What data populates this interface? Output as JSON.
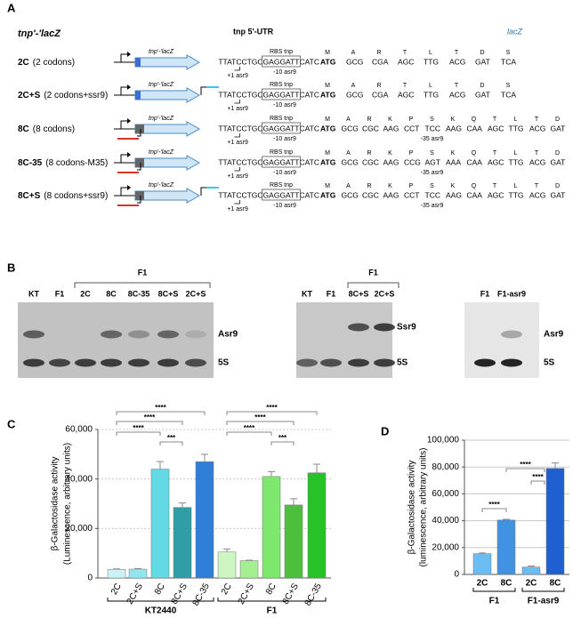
{
  "panel_labels": [
    "A",
    "B",
    "C",
    "D"
  ],
  "constructs": {
    "title": "tnp'-'lacZ",
    "utr_title": "tnp 5'-UTR",
    "lacz_title": "lacZ",
    "gene_label": "tnp'-'lacZ",
    "utr": [
      "TTATCCTGC",
      "GAGGATT",
      "CATC"
    ],
    "rbs_label": "RBS tnp",
    "minus10_label": "-10 asr9",
    "plus1_label": "+1 asr9",
    "rows": [
      {
        "name": "2C",
        "desc": "(2 codons)",
        "aa": [
          "M",
          "A",
          "R",
          "T",
          "L",
          "T",
          "D",
          "S"
        ],
        "codons": [
          "ATG",
          "GCG",
          "CGA",
          "AGC",
          "TTG",
          "ACG",
          "GAT",
          "TCA"
        ],
        "colors": [
          "#000000",
          "#000000",
          "#999999",
          "#999999",
          "#2e75b6",
          "#2e75b6",
          "#2e75b6",
          "#2e75b6"
        ]
      },
      {
        "name": "2C+S",
        "desc": "(2 codons+ssr9)",
        "aa": [
          "M",
          "A",
          "R",
          "T",
          "L",
          "T",
          "D",
          "S"
        ],
        "codons": [
          "ATG",
          "GCG",
          "CGA",
          "AGC",
          "TTG",
          "ACG",
          "GAT",
          "TCA"
        ],
        "colors": [
          "#000000",
          "#000000",
          "#999999",
          "#999999",
          "#2e75b6",
          "#2e75b6",
          "#2e75b6",
          "#2e75b6"
        ]
      },
      {
        "name": "8C",
        "desc": "(8 codons)",
        "aa": [
          "M",
          "A",
          "R",
          "K",
          "P",
          "S",
          "K",
          "Q",
          "T",
          "L",
          "T",
          "D"
        ],
        "codons": [
          "ATG",
          "GCG",
          "CGC",
          "AAG",
          "CCT",
          "TCC",
          "AAG",
          "CAA",
          "AGC",
          "TTG",
          "ACG",
          "GAT"
        ],
        "colors": [
          "#000000",
          "#000000",
          "#000000",
          "#000000",
          "#000000",
          "#3aaa35",
          "#3aaa35",
          "#000000",
          "#999999",
          "#2e75b6",
          "#2e75b6",
          "#2e75b6"
        ],
        "note": "-35 asr9"
      },
      {
        "name": "8C-35",
        "desc": "(8 codons-M35)",
        "aa": [
          "M",
          "A",
          "R",
          "K",
          "P",
          "S",
          "K",
          "Q",
          "T",
          "L",
          "T",
          "D"
        ],
        "codons": [
          "ATG",
          "GCG",
          "CGC",
          "AAG",
          "CCG",
          "AGT",
          "AAA",
          "CAA",
          "AGC",
          "TTG",
          "ACG",
          "GAT"
        ],
        "colors": [
          "#000000",
          "#000000",
          "#000000",
          "#000000",
          "#000000",
          "#e03c31",
          "#e03c31",
          "#000000",
          "#999999",
          "#2e75b6",
          "#2e75b6",
          "#2e75b6"
        ],
        "note": "-35 asr9"
      },
      {
        "name": "8C+S",
        "desc": "(8 codons+ssr9)",
        "aa": [
          "M",
          "A",
          "R",
          "K",
          "P",
          "S",
          "K",
          "Q",
          "T",
          "L",
          "T",
          "D"
        ],
        "codons": [
          "ATG",
          "GCG",
          "CGC",
          "AAG",
          "CCT",
          "TCC",
          "AAG",
          "CAA",
          "AGC",
          "TTG",
          "ACG",
          "GAT"
        ],
        "colors": [
          "#000000",
          "#000000",
          "#000000",
          "#000000",
          "#000000",
          "#3aaa35",
          "#3aaa35",
          "#000000",
          "#999999",
          "#2e75b6",
          "#2e75b6",
          "#2e75b6"
        ],
        "note": "-35 asr9"
      }
    ]
  },
  "blots": [
    {
      "lanes": [
        "KT",
        "F1",
        "2C",
        "8C",
        "8C-35",
        "8C+S",
        "2C+S"
      ],
      "group": "F1",
      "bands": [
        {
          "name": "Asr9",
          "color": "#e03c31"
        },
        {
          "name": "5S",
          "color": "#111111"
        }
      ]
    },
    {
      "lanes": [
        "KT",
        "F1",
        "8C+S",
        "2C+S"
      ],
      "group": "F1",
      "bands": [
        {
          "name": "Ssr9",
          "color": "#2e75b6"
        },
        {
          "name": "5S",
          "color": "#111111"
        }
      ]
    },
    {
      "lanes": [
        "F1",
        "F1-asr9"
      ],
      "bands": [
        {
          "name": "Asr9",
          "color": "#e03c31"
        },
        {
          "name": "5S",
          "color": "#111111"
        }
      ]
    }
  ],
  "chart_data": [
    {
      "type": "bar",
      "ylabel": [
        "β-Galactosidase activity",
        "(Luminescence, arbitrary units)"
      ],
      "ylim": [
        0,
        60000
      ],
      "yticks": [
        0,
        {
          "value": 20000,
          "label": "20,000"
        },
        {
          "value": 40000,
          "label": "40,000"
        },
        {
          "value": 60000,
          "label": "60,000"
        }
      ],
      "grid": true,
      "series": [
        {
          "name": "KT2440",
          "categories": [
            "2C",
            "2C+S",
            "8C",
            "8C+S",
            "8C-35"
          ],
          "values": [
            3500,
            3600,
            44000,
            28500,
            47000
          ],
          "errors": [
            200,
            200,
            3000,
            1800,
            3000
          ],
          "colors": [
            "#c9f3f6",
            "#8fe6ee",
            "#63d9e6",
            "#2f9ea8",
            "#2f7fd8"
          ]
        },
        {
          "name": "F1",
          "categories": [
            "2C",
            "2C+S",
            "8C",
            "8C+S",
            "8C-35"
          ],
          "values": [
            10500,
            7000,
            41000,
            29500,
            42500
          ],
          "errors": [
            1200,
            200,
            2000,
            2500,
            3500
          ],
          "colors": [
            "#cdf6c3",
            "#a4f090",
            "#7de86b",
            "#4cbf3c",
            "#27c227"
          ]
        }
      ],
      "significance": [
        "****",
        "****",
        "****",
        "***",
        "****",
        "****",
        "****",
        "***"
      ]
    },
    {
      "type": "bar",
      "ylabel": [
        "β-Galactosidase activity",
        "(luminescence, arbitrary units)"
      ],
      "ylim": [
        0,
        100000
      ],
      "yticks": [
        0,
        {
          "value": 20000,
          "label": "20,000"
        },
        {
          "value": 40000,
          "label": "40,000"
        },
        {
          "value": 60000,
          "label": "60,000"
        },
        {
          "value": 80000,
          "label": "80,000"
        },
        {
          "value": 100000,
          "label": "100,000"
        }
      ],
      "grid": true,
      "series": [
        {
          "name": "F1",
          "categories": [
            "2C",
            "8C"
          ],
          "values": [
            15500,
            40500
          ],
          "errors": [
            500,
            600
          ],
          "colors": [
            "#6cbcf2",
            "#3f93e2"
          ]
        },
        {
          "name": "F1-asr9",
          "categories": [
            "2C",
            "8C"
          ],
          "values": [
            5500,
            79000
          ],
          "errors": [
            700,
            4000
          ],
          "colors": [
            "#6cbcf2",
            "#1f5fd0"
          ]
        }
      ],
      "significance": [
        "****",
        "****",
        "****"
      ]
    }
  ]
}
